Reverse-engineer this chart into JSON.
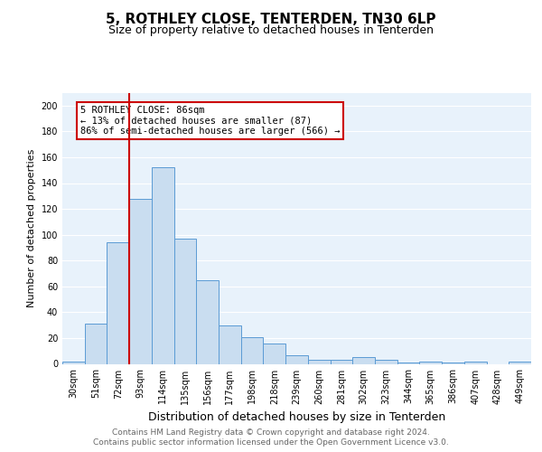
{
  "title": "5, ROTHLEY CLOSE, TENTERDEN, TN30 6LP",
  "subtitle": "Size of property relative to detached houses in Tenterden",
  "xlabel": "Distribution of detached houses by size in Tenterden",
  "ylabel": "Number of detached properties",
  "categories": [
    "30sqm",
    "51sqm",
    "72sqm",
    "93sqm",
    "114sqm",
    "135sqm",
    "156sqm",
    "177sqm",
    "198sqm",
    "218sqm",
    "239sqm",
    "260sqm",
    "281sqm",
    "302sqm",
    "323sqm",
    "344sqm",
    "365sqm",
    "386sqm",
    "407sqm",
    "428sqm",
    "449sqm"
  ],
  "values": [
    2,
    31,
    94,
    128,
    152,
    97,
    65,
    30,
    21,
    16,
    7,
    3,
    3,
    5,
    3,
    1,
    2,
    1,
    2,
    0,
    2
  ],
  "bar_color": "#c9ddf0",
  "bar_edgecolor": "#5b9bd5",
  "vline_color": "#cc0000",
  "ylim": [
    0,
    210
  ],
  "yticks": [
    0,
    20,
    40,
    60,
    80,
    100,
    120,
    140,
    160,
    180,
    200
  ],
  "annotation_text": "5 ROTHLEY CLOSE: 86sqm\n← 13% of detached houses are smaller (87)\n86% of semi-detached houses are larger (566) →",
  "annotation_box_color": "#ffffff",
  "annotation_box_edgecolor": "#cc0000",
  "footer_line1": "Contains HM Land Registry data © Crown copyright and database right 2024.",
  "footer_line2": "Contains public sector information licensed under the Open Government Licence v3.0.",
  "background_color": "#e8f2fb",
  "fig_background": "#ffffff",
  "title_fontsize": 11,
  "subtitle_fontsize": 9,
  "xlabel_fontsize": 9,
  "ylabel_fontsize": 8,
  "footer_fontsize": 6.5,
  "tick_fontsize": 7,
  "annot_fontsize": 7.5
}
